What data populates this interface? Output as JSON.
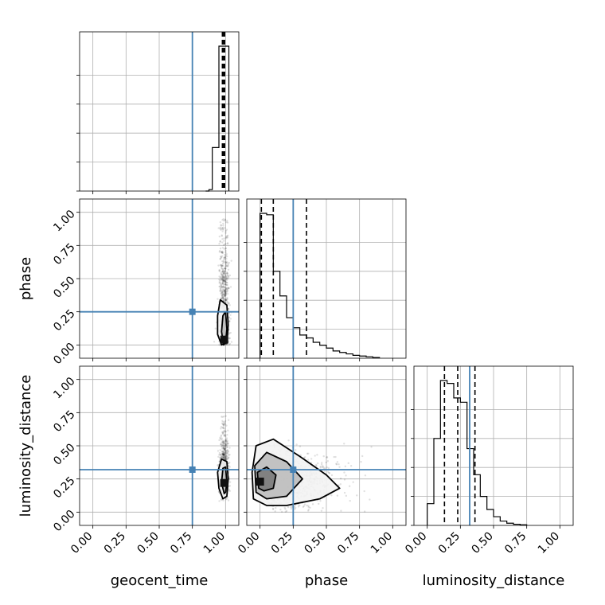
{
  "chart_data": {
    "type": "corner",
    "parameters": [
      "geocent_time",
      "phase",
      "luminosity_distance"
    ],
    "axis_range": [
      -0.1,
      1.1
    ],
    "ticks": [
      0.0,
      0.25,
      0.5,
      0.75,
      1.0
    ],
    "tick_labels": [
      "0.00",
      "0.25",
      "0.50",
      "0.75",
      "1.00"
    ],
    "grid": true,
    "truth_color": "#4682b4",
    "truths": {
      "geocent_time": 0.75,
      "phase": 0.25,
      "luminosity_distance": 0.32
    },
    "histograms": {
      "geocent_time": {
        "bin_edges": [
          0.85,
          0.875,
          0.9,
          0.925,
          0.95,
          0.975,
          1.0,
          1.025
        ],
        "heights": [
          0.0,
          0.01,
          0.3,
          0.3,
          1.0,
          1.0,
          1.0
        ],
        "quantiles": [
          0.976,
          0.985,
          0.993
        ]
      },
      "phase": {
        "bin_edges": [
          0.0,
          0.05,
          0.1,
          0.15,
          0.2,
          0.25,
          0.3,
          0.35,
          0.4,
          0.45,
          0.5,
          0.55,
          0.6,
          0.65,
          0.7,
          0.75,
          0.8,
          0.85,
          0.9
        ],
        "heights": [
          1.0,
          0.99,
          0.6,
          0.43,
          0.28,
          0.21,
          0.16,
          0.14,
          0.11,
          0.09,
          0.07,
          0.05,
          0.04,
          0.03,
          0.02,
          0.015,
          0.01,
          0.005
        ],
        "quantiles": [
          0.01,
          0.1,
          0.35
        ]
      },
      "luminosity_distance": {
        "bin_edges": [
          0.0,
          0.05,
          0.1,
          0.15,
          0.2,
          0.25,
          0.3,
          0.35,
          0.4,
          0.45,
          0.5,
          0.55,
          0.6,
          0.65,
          0.7,
          0.75
        ],
        "heights": [
          0.15,
          0.6,
          1.0,
          0.98,
          0.88,
          0.85,
          0.53,
          0.35,
          0.2,
          0.11,
          0.06,
          0.03,
          0.015,
          0.008,
          0.004
        ],
        "quantiles": [
          0.13,
          0.23,
          0.36
        ]
      }
    },
    "contours": {
      "phase_vs_geocent_time": {
        "x": "geocent_time",
        "y": "phase",
        "samples_center": [
          0.99,
          0.2
        ],
        "samples_spread": [
          0.03,
          0.25
        ],
        "samples_y_range": [
          0.0,
          0.95
        ],
        "levels": [
          [
            [
              0.97,
              0.0
            ],
            [
              0.94,
              0.08
            ],
            [
              0.94,
              0.22
            ],
            [
              0.96,
              0.34
            ],
            [
              1.01,
              0.3
            ],
            [
              1.02,
              0.15
            ],
            [
              1.01,
              0.02
            ]
          ],
          [
            [
              0.985,
              0.0
            ],
            [
              0.97,
              0.1
            ],
            [
              0.98,
              0.22
            ],
            [
              1.0,
              0.25
            ],
            [
              1.01,
              0.12
            ],
            [
              1.0,
              0.02
            ]
          ]
        ],
        "peak": [
          0.99,
          0.04
        ]
      },
      "luminosity_distance_vs_geocent_time": {
        "x": "geocent_time",
        "y": "luminosity_distance",
        "samples_center": [
          0.99,
          0.27
        ],
        "samples_spread": [
          0.03,
          0.13
        ],
        "samples_y_range": [
          0.05,
          0.75
        ],
        "levels": [
          [
            [
              0.98,
              0.1
            ],
            [
              0.95,
              0.18
            ],
            [
              0.94,
              0.3
            ],
            [
              0.97,
              0.4
            ],
            [
              1.01,
              0.38
            ],
            [
              1.02,
              0.25
            ],
            [
              1.01,
              0.12
            ]
          ],
          [
            [
              0.99,
              0.14
            ],
            [
              0.97,
              0.22
            ],
            [
              0.98,
              0.33
            ],
            [
              1.0,
              0.34
            ],
            [
              1.01,
              0.22
            ],
            [
              1.0,
              0.15
            ]
          ]
        ],
        "peak": [
          0.99,
          0.22
        ]
      },
      "luminosity_distance_vs_phase": {
        "x": "phase",
        "y": "luminosity_distance",
        "samples_center": [
          0.15,
          0.25
        ],
        "samples_spread": [
          0.2,
          0.13
        ],
        "samples_y_range": [
          0.0,
          0.75
        ],
        "levels": [
          [
            [
              -0.05,
              0.1
            ],
            [
              -0.06,
              0.3
            ],
            [
              -0.03,
              0.5
            ],
            [
              0.1,
              0.55
            ],
            [
              0.3,
              0.42
            ],
            [
              0.5,
              0.28
            ],
            [
              0.6,
              0.18
            ],
            [
              0.45,
              0.1
            ],
            [
              0.2,
              0.05
            ],
            [
              0.05,
              0.05
            ]
          ],
          [
            [
              -0.03,
              0.15
            ],
            [
              -0.04,
              0.35
            ],
            [
              0.05,
              0.45
            ],
            [
              0.2,
              0.38
            ],
            [
              0.32,
              0.25
            ],
            [
              0.2,
              0.12
            ],
            [
              0.05,
              0.1
            ]
          ],
          [
            [
              -0.01,
              0.18
            ],
            [
              -0.02,
              0.3
            ],
            [
              0.05,
              0.34
            ],
            [
              0.12,
              0.28
            ],
            [
              0.1,
              0.18
            ],
            [
              0.03,
              0.16
            ]
          ]
        ],
        "peak": [
          0.0,
          0.23
        ]
      }
    }
  }
}
